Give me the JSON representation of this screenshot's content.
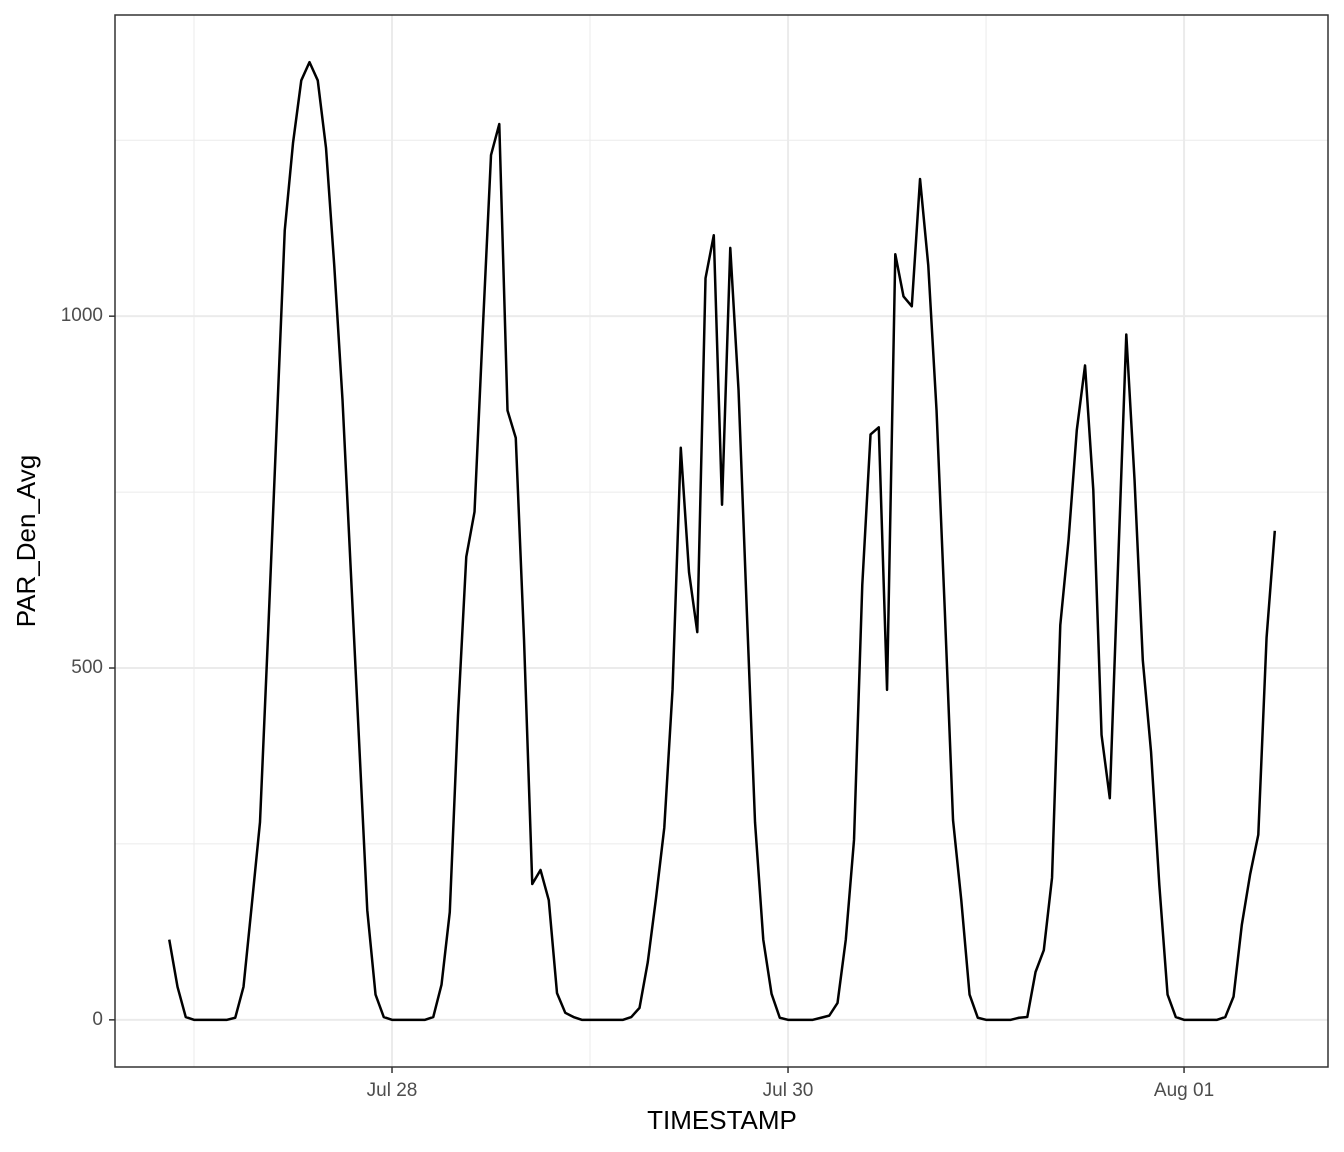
{
  "chart_data": {
    "type": "line",
    "x_label": "TIMESTAMP",
    "y_label": "PAR_Den_Avg",
    "color": "#000000",
    "grid": true,
    "xlim": [
      26.601,
      32.727
    ],
    "ylim": [
      -67,
      1428
    ],
    "xticks": [
      {
        "value": 28,
        "label": "Jul 28"
      },
      {
        "value": 30,
        "label": "Jul 30"
      },
      {
        "value": 32,
        "label": "Aug 01"
      }
    ],
    "xminor": [
      27,
      29,
      31
    ],
    "yticks": [
      0,
      500,
      1000
    ],
    "yminor": [
      250,
      750,
      1250
    ],
    "x": [
      26.875,
      26.9167,
      26.9583,
      27,
      27.0417,
      27.0833,
      27.125,
      27.1667,
      27.2083,
      27.25,
      27.2917,
      27.3333,
      27.375,
      27.4167,
      27.4583,
      27.5,
      27.5417,
      27.5833,
      27.625,
      27.6667,
      27.7083,
      27.75,
      27.7917,
      27.8333,
      27.875,
      27.9167,
      27.9583,
      28,
      28.0417,
      28.0833,
      28.125,
      28.1667,
      28.2083,
      28.25,
      28.2917,
      28.3333,
      28.375,
      28.4167,
      28.4583,
      28.5,
      28.5417,
      28.5833,
      28.625,
      28.6667,
      28.7083,
      28.75,
      28.7917,
      28.8333,
      28.875,
      28.9167,
      28.9583,
      29,
      29.0417,
      29.0833,
      29.125,
      29.1667,
      29.2083,
      29.25,
      29.2917,
      29.3333,
      29.375,
      29.4167,
      29.4583,
      29.5,
      29.5417,
      29.5833,
      29.625,
      29.6667,
      29.7083,
      29.75,
      29.7917,
      29.8333,
      29.875,
      29.9167,
      29.9583,
      30,
      30.0417,
      30.0833,
      30.125,
      30.1667,
      30.2083,
      30.25,
      30.2917,
      30.3333,
      30.375,
      30.4167,
      30.4583,
      30.5,
      30.5417,
      30.5833,
      30.625,
      30.6667,
      30.7083,
      30.75,
      30.7917,
      30.8333,
      30.875,
      30.9167,
      30.9583,
      31,
      31.0417,
      31.0833,
      31.125,
      31.1667,
      31.2083,
      31.25,
      31.2917,
      31.3333,
      31.375,
      31.4167,
      31.4583,
      31.5,
      31.5417,
      31.5833,
      31.625,
      31.6667,
      31.7083,
      31.75,
      31.7917,
      31.8333,
      31.875,
      31.9167,
      31.9583,
      32,
      32.0417,
      32.0833,
      32.125,
      32.1667,
      32.2083,
      32.25,
      32.2917,
      32.3333,
      32.375,
      32.4167,
      32.4583
    ],
    "values": [
      114,
      47,
      4,
      0,
      0,
      0,
      0,
      0,
      3,
      47,
      163,
      281,
      554,
      838,
      1122,
      1246,
      1335,
      1361,
      1335,
      1239,
      1072,
      881,
      639,
      398,
      156,
      36,
      4,
      0,
      0,
      0,
      0,
      0,
      4,
      50,
      153,
      433,
      658,
      722,
      980,
      1229,
      1273,
      866,
      827,
      540,
      193,
      213,
      170,
      38,
      10,
      4,
      0,
      0,
      0,
      0,
      0,
      0,
      4,
      17,
      82,
      173,
      273,
      469,
      813,
      636,
      551,
      1054,
      1115,
      732,
      1097,
      895,
      582,
      281,
      114,
      37,
      3,
      0,
      0,
      0,
      0,
      3,
      6,
      24,
      114,
      256,
      618,
      832,
      842,
      469,
      1088,
      1028,
      1014,
      1195,
      1072,
      866,
      582,
      284,
      170,
      36,
      3,
      0,
      0,
      0,
      0,
      3,
      4,
      68,
      99,
      202,
      561,
      682,
      838,
      930,
      753,
      405,
      315,
      646,
      974,
      767,
      511,
      381,
      192,
      36,
      4,
      0,
      0,
      0,
      0,
      0,
      4,
      33,
      135,
      206,
      263,
      543,
      695
    ]
  }
}
